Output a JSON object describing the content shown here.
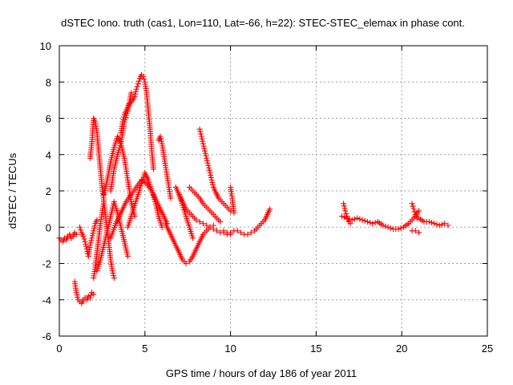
{
  "chart_data": {
    "type": "scatter",
    "title": "dSTEC Iono. truth (cas1, Lon=110, Lat=-66, h=22): STEC-STEC_elemax in phase cont.",
    "xlabel": "GPS time / hours of day 186 of year 2011",
    "ylabel": "dSTEC  / TECUs",
    "xlim": [
      0,
      25
    ],
    "ylim": [
      -6,
      10
    ],
    "xticks": [
      0,
      5,
      10,
      15,
      20,
      25
    ],
    "yticks": [
      -6,
      -4,
      -2,
      0,
      2,
      4,
      6,
      8,
      10
    ],
    "grid": true,
    "marker": "plus",
    "color": "#ff0000",
    "series": [
      {
        "x": [
          0,
          0.1,
          0.2,
          0.3,
          0.4,
          0.5,
          0.6,
          0.7,
          0.8,
          0.9,
          1.0
        ],
        "y": [
          -0.6,
          -0.7,
          -0.8,
          -0.6,
          -0.7,
          -0.5,
          -0.4,
          -0.6,
          -0.5,
          -0.3,
          -0.4
        ]
      },
      {
        "x": [
          0.9,
          1.0,
          1.1,
          1.2,
          1.3,
          1.4,
          1.5,
          1.6,
          1.7,
          1.8,
          1.9,
          2.0
        ],
        "y": [
          -3.0,
          -3.6,
          -4.0,
          -4.1,
          -4.2,
          -4.0,
          -3.9,
          -4.0,
          -3.8,
          -3.9,
          -3.6,
          -3.7
        ]
      },
      {
        "x": [
          1.2,
          1.3,
          1.4,
          1.5,
          1.6,
          1.7,
          1.8,
          1.9,
          2.0,
          2.1,
          2.2
        ],
        "y": [
          0.0,
          -0.3,
          -0.5,
          -0.8,
          -1.2,
          -1.6,
          -1.0,
          -0.6,
          -0.2,
          0.2,
          0.4
        ]
      },
      {
        "x": [
          1.8,
          1.9,
          2.0,
          2.1,
          2.2,
          2.3,
          2.4,
          2.5,
          2.6
        ],
        "y": [
          3.8,
          4.6,
          6.0,
          5.8,
          5.2,
          4.2,
          3.2,
          2.2,
          1.5
        ]
      },
      {
        "x": [
          2.0,
          2.1,
          2.2,
          2.3,
          2.4,
          2.5,
          2.6,
          2.7,
          2.8,
          2.9,
          3.0,
          3.1,
          3.2
        ],
        "y": [
          -2.8,
          -2.2,
          -1.4,
          -0.6,
          0.2,
          0.8,
          1.4,
          0.6,
          -0.2,
          -1.0,
          -1.8,
          -2.4,
          -2.8
        ]
      },
      {
        "x": [
          2.2,
          2.4,
          2.6,
          2.8,
          3.0,
          3.2,
          3.4,
          3.6,
          3.8,
          4.0
        ],
        "y": [
          -2.4,
          -1.8,
          -1.0,
          -0.2,
          0.6,
          1.4,
          0.8,
          0.0,
          -0.8,
          -1.6
        ]
      },
      {
        "x": [
          2.6,
          2.8,
          3.0,
          3.2,
          3.4,
          3.6,
          3.8,
          4.0,
          4.2,
          4.4
        ],
        "y": [
          1.8,
          2.6,
          3.6,
          4.4,
          5.0,
          4.6,
          3.8,
          2.6,
          1.4,
          0.6
        ]
      },
      {
        "x": [
          3.0,
          3.2,
          3.4,
          3.6,
          3.8,
          4.0,
          4.2
        ],
        "y": [
          2.0,
          3.2,
          4.0,
          4.6,
          5.8,
          6.4,
          7.4
        ]
      },
      {
        "x": [
          3.6,
          3.7,
          3.8,
          3.9,
          4.0,
          4.1,
          4.2,
          4.3,
          4.4,
          4.5,
          4.6,
          4.7,
          4.8,
          4.9,
          5.0,
          5.1,
          5.2,
          5.3,
          5.4,
          5.5
        ],
        "y": [
          5.2,
          5.8,
          6.2,
          6.4,
          6.6,
          6.8,
          6.9,
          7.0,
          7.2,
          7.6,
          7.9,
          8.2,
          8.4,
          8.3,
          8.0,
          7.4,
          6.4,
          5.4,
          4.2,
          3.2
        ]
      },
      {
        "x": [
          3.0,
          3.3,
          3.6,
          3.9,
          4.2,
          4.5,
          4.8,
          5.1,
          5.4,
          5.7,
          6.0,
          6.3
        ],
        "y": [
          -0.6,
          0.2,
          0.8,
          1.4,
          1.8,
          2.2,
          2.6,
          2.4,
          2.0,
          1.4,
          0.8,
          0.2
        ]
      },
      {
        "x": [
          4.0,
          4.2,
          4.4,
          4.6,
          4.8,
          5.0,
          5.2,
          5.4,
          5.6,
          5.8,
          6.0
        ],
        "y": [
          0.0,
          0.6,
          1.2,
          1.8,
          2.4,
          3.0,
          2.6,
          2.0,
          1.4,
          0.6,
          0.0
        ]
      },
      {
        "x": [
          5.8,
          5.9,
          6.0,
          6.1,
          6.2,
          6.3,
          6.4,
          6.5
        ],
        "y": [
          4.8,
          5.0,
          4.6,
          4.0,
          3.4,
          2.8,
          2.2,
          1.6
        ]
      },
      {
        "x": [
          6.2,
          6.4,
          6.6,
          6.8,
          7.0,
          7.2,
          7.4,
          7.6,
          7.8,
          8.0,
          8.2,
          8.4,
          8.6,
          8.8,
          9.0
        ],
        "y": [
          0.2,
          -0.2,
          -0.6,
          -1.0,
          -1.4,
          -1.8,
          -2.0,
          -1.9,
          -1.6,
          -1.2,
          -0.8,
          -0.4,
          -0.2,
          0.0,
          0.1
        ]
      },
      {
        "x": [
          7.0,
          7.2,
          7.4,
          7.6,
          7.8,
          8.0,
          8.2,
          8.4,
          8.6,
          8.8,
          9.0,
          9.2,
          9.4,
          9.6,
          9.8,
          10.0
        ],
        "y": [
          1.8,
          1.4,
          1.0,
          0.8,
          0.6,
          0.4,
          0.3,
          0.2,
          0.1,
          0.0,
          -0.1,
          -0.2,
          -0.3,
          -0.3,
          -0.4,
          -0.4
        ]
      },
      {
        "x": [
          6.8,
          7.0,
          7.2,
          7.4,
          7.6,
          7.8
        ],
        "y": [
          2.2,
          1.8,
          1.2,
          0.6,
          0.0,
          -0.6
        ]
      },
      {
        "x": [
          7.6,
          7.8,
          8.0,
          8.2,
          8.4,
          8.6,
          8.8,
          9.0,
          9.2,
          9.4
        ],
        "y": [
          2.2,
          2.0,
          1.8,
          1.6,
          1.3,
          1.1,
          0.9,
          0.7,
          0.5,
          0.3
        ]
      },
      {
        "x": [
          8.2,
          8.3,
          8.4,
          8.5,
          8.6,
          8.7,
          8.8,
          8.9,
          9.0,
          9.1,
          9.2,
          9.3,
          9.4,
          9.5,
          9.6,
          9.7,
          9.8,
          9.9,
          10.0
        ],
        "y": [
          5.4,
          5.0,
          4.6,
          4.2,
          3.8,
          3.4,
          3.0,
          2.6,
          2.2,
          2.0,
          1.8,
          1.6,
          1.5,
          1.4,
          1.3,
          1.2,
          1.1,
          1.0,
          0.9
        ]
      },
      {
        "x": [
          10.0,
          10.1,
          10.2
        ],
        "y": [
          2.2,
          1.6,
          0.8
        ]
      },
      {
        "x": [
          9.6,
          9.8,
          10.0,
          10.2,
          10.4,
          10.6,
          10.8,
          11.0,
          11.2,
          11.4,
          11.6,
          11.8,
          12.0,
          12.2,
          12.3
        ],
        "y": [
          -0.2,
          -0.3,
          -0.3,
          -0.2,
          -0.2,
          -0.3,
          -0.4,
          -0.4,
          -0.3,
          -0.2,
          0.0,
          0.2,
          0.4,
          0.8,
          1.0
        ]
      },
      {
        "x": [
          16.6,
          16.7,
          16.8,
          16.9,
          17.0
        ],
        "y": [
          1.3,
          0.9,
          0.6,
          0.3,
          0.2
        ]
      },
      {
        "x": [
          16.5,
          16.8,
          17.1,
          17.4,
          17.7,
          18.0,
          18.3,
          18.6,
          18.9,
          19.2,
          19.5,
          19.8,
          20.1,
          20.4,
          20.7,
          21.0
        ],
        "y": [
          0.6,
          0.5,
          0.4,
          0.5,
          0.4,
          0.3,
          0.2,
          0.3,
          0.1,
          0.0,
          -0.1,
          -0.1,
          0.0,
          0.2,
          0.5,
          0.9
        ]
      },
      {
        "x": [
          20.6,
          20.7,
          20.8,
          20.9
        ],
        "y": [
          1.3,
          1.0,
          0.7,
          0.5
        ]
      },
      {
        "x": [
          20.6,
          20.8,
          21.0
        ],
        "y": [
          -0.2,
          -0.2,
          -0.3
        ]
      },
      {
        "x": [
          21.0,
          21.3,
          21.6,
          21.9,
          22.2,
          22.5,
          22.7
        ],
        "y": [
          0.5,
          0.3,
          0.3,
          0.2,
          0.1,
          0.2,
          0.1
        ]
      }
    ]
  }
}
